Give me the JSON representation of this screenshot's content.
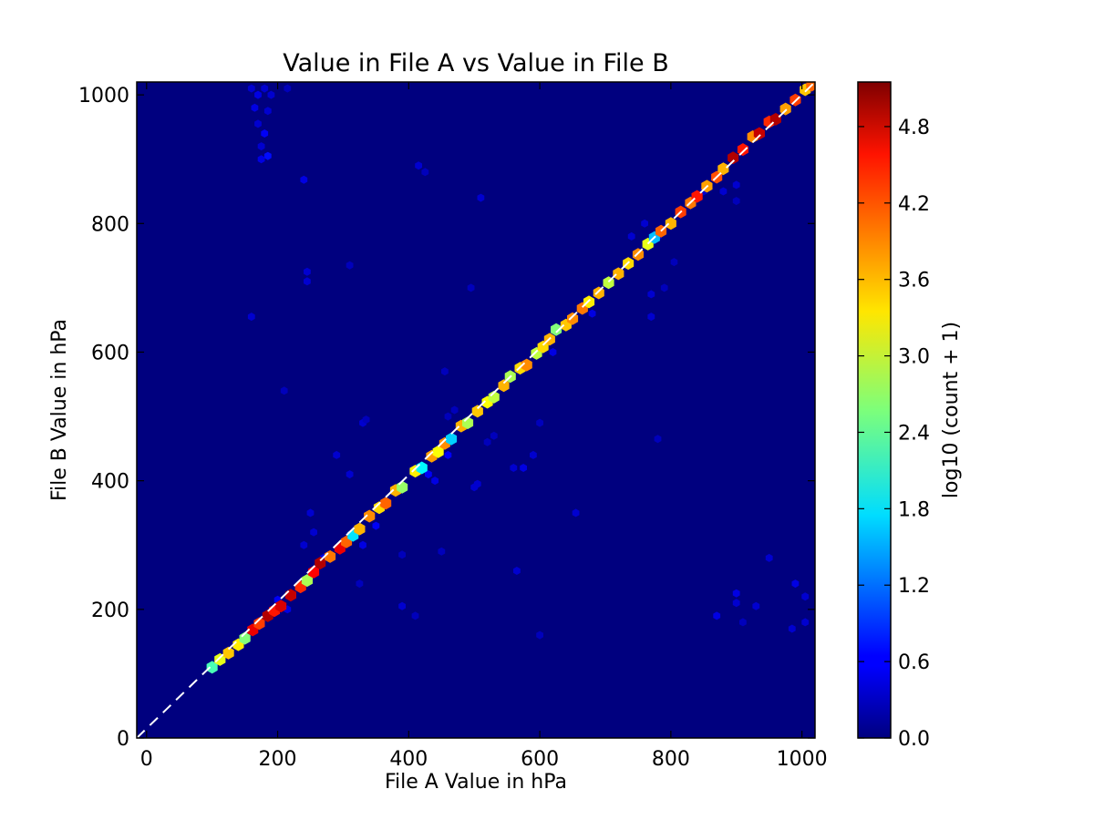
{
  "chart_data": {
    "type": "heatmap",
    "subtype": "hexbin",
    "title": "Value in File A vs Value in File B",
    "xlabel": "File A Value in hPa",
    "ylabel": "File B Value in hPa",
    "xlim": [
      -15,
      1020
    ],
    "ylim": [
      0,
      1020
    ],
    "x_ticks": [
      0,
      200,
      400,
      600,
      800,
      1000
    ],
    "y_ticks": [
      0,
      200,
      400,
      600,
      800,
      1000
    ],
    "grid": false,
    "background_color": "#00007f",
    "colormap": "jet",
    "reference_line": {
      "style": "dashed",
      "color": "#ffffff",
      "from": [
        -15,
        0
      ],
      "to": [
        1020,
        1020
      ]
    },
    "colorbar": {
      "label": "log10 (count + 1)",
      "range": [
        0,
        5.15
      ],
      "ticks": [
        "0.0",
        "0.6",
        "1.2",
        "1.8",
        "2.4",
        "3.0",
        "3.6",
        "4.2",
        "4.8"
      ]
    },
    "diagonal_points": [
      {
        "x": 100,
        "y": 110,
        "v": 2.3
      },
      {
        "x": 112,
        "y": 122,
        "v": 3.1
      },
      {
        "x": 125,
        "y": 132,
        "v": 3.5
      },
      {
        "x": 140,
        "y": 145,
        "v": 3.3
      },
      {
        "x": 150,
        "y": 155,
        "v": 2.6
      },
      {
        "x": 162,
        "y": 168,
        "v": 4.6
      },
      {
        "x": 172,
        "y": 178,
        "v": 4.2
      },
      {
        "x": 185,
        "y": 190,
        "v": 4.9
      },
      {
        "x": 195,
        "y": 198,
        "v": 4.4
      },
      {
        "x": 205,
        "y": 205,
        "v": 4.7
      },
      {
        "x": 220,
        "y": 222,
        "v": 4.8
      },
      {
        "x": 235,
        "y": 235,
        "v": 4.3
      },
      {
        "x": 245,
        "y": 245,
        "v": 2.8
      },
      {
        "x": 255,
        "y": 258,
        "v": 4.5
      },
      {
        "x": 265,
        "y": 272,
        "v": 4.9
      },
      {
        "x": 280,
        "y": 282,
        "v": 3.9
      },
      {
        "x": 295,
        "y": 295,
        "v": 4.6
      },
      {
        "x": 305,
        "y": 305,
        "v": 4.0
      },
      {
        "x": 315,
        "y": 315,
        "v": 1.8
      },
      {
        "x": 325,
        "y": 325,
        "v": 3.6
      },
      {
        "x": 340,
        "y": 345,
        "v": 3.8
      },
      {
        "x": 355,
        "y": 358,
        "v": 3.4
      },
      {
        "x": 365,
        "y": 365,
        "v": 4.0
      },
      {
        "x": 380,
        "y": 385,
        "v": 3.6
      },
      {
        "x": 390,
        "y": 390,
        "v": 2.7
      },
      {
        "x": 410,
        "y": 415,
        "v": 3.3
      },
      {
        "x": 420,
        "y": 420,
        "v": 1.9
      },
      {
        "x": 435,
        "y": 438,
        "v": 3.7
      },
      {
        "x": 445,
        "y": 445,
        "v": 3.2
      },
      {
        "x": 455,
        "y": 458,
        "v": 3.8
      },
      {
        "x": 465,
        "y": 465,
        "v": 1.7
      },
      {
        "x": 480,
        "y": 485,
        "v": 3.6
      },
      {
        "x": 490,
        "y": 490,
        "v": 2.8
      },
      {
        "x": 505,
        "y": 508,
        "v": 3.5
      },
      {
        "x": 520,
        "y": 522,
        "v": 3.2
      },
      {
        "x": 530,
        "y": 530,
        "v": 2.9
      },
      {
        "x": 545,
        "y": 548,
        "v": 3.6
      },
      {
        "x": 555,
        "y": 562,
        "v": 2.8
      },
      {
        "x": 570,
        "y": 575,
        "v": 3.4
      },
      {
        "x": 580,
        "y": 580,
        "v": 3.8
      },
      {
        "x": 595,
        "y": 598,
        "v": 2.9
      },
      {
        "x": 605,
        "y": 608,
        "v": 3.4
      },
      {
        "x": 615,
        "y": 620,
        "v": 3.6
      },
      {
        "x": 625,
        "y": 635,
        "v": 2.6
      },
      {
        "x": 640,
        "y": 642,
        "v": 3.5
      },
      {
        "x": 650,
        "y": 652,
        "v": 3.8
      },
      {
        "x": 665,
        "y": 668,
        "v": 3.9
      },
      {
        "x": 675,
        "y": 678,
        "v": 3.3
      },
      {
        "x": 690,
        "y": 692,
        "v": 3.6
      },
      {
        "x": 705,
        "y": 708,
        "v": 2.9
      },
      {
        "x": 720,
        "y": 722,
        "v": 3.6
      },
      {
        "x": 735,
        "y": 738,
        "v": 3.4
      },
      {
        "x": 750,
        "y": 752,
        "v": 3.8
      },
      {
        "x": 765,
        "y": 768,
        "v": 3.1
      },
      {
        "x": 775,
        "y": 778,
        "v": 1.6
      },
      {
        "x": 785,
        "y": 788,
        "v": 4.0
      },
      {
        "x": 800,
        "y": 800,
        "v": 3.6
      },
      {
        "x": 815,
        "y": 818,
        "v": 4.2
      },
      {
        "x": 830,
        "y": 832,
        "v": 3.9
      },
      {
        "x": 840,
        "y": 842,
        "v": 4.4
      },
      {
        "x": 855,
        "y": 858,
        "v": 3.7
      },
      {
        "x": 870,
        "y": 872,
        "v": 4.1
      },
      {
        "x": 880,
        "y": 885,
        "v": 3.6
      },
      {
        "x": 895,
        "y": 902,
        "v": 4.9
      },
      {
        "x": 910,
        "y": 915,
        "v": 4.4
      },
      {
        "x": 925,
        "y": 935,
        "v": 3.8
      },
      {
        "x": 935,
        "y": 940,
        "v": 4.8
      },
      {
        "x": 950,
        "y": 958,
        "v": 4.3
      },
      {
        "x": 960,
        "y": 962,
        "v": 4.9
      },
      {
        "x": 975,
        "y": 978,
        "v": 3.7
      },
      {
        "x": 990,
        "y": 992,
        "v": 4.2
      },
      {
        "x": 1005,
        "y": 1008,
        "v": 3.5
      },
      {
        "x": 1015,
        "y": 1015,
        "v": 4.0
      }
    ],
    "scatter_points": [
      {
        "x": 160,
        "y": 1010,
        "v": 0.4
      },
      {
        "x": 170,
        "y": 1000,
        "v": 0.5
      },
      {
        "x": 180,
        "y": 1010,
        "v": 0.4
      },
      {
        "x": 190,
        "y": 1000,
        "v": 0.4
      },
      {
        "x": 165,
        "y": 980,
        "v": 0.5
      },
      {
        "x": 185,
        "y": 975,
        "v": 0.4
      },
      {
        "x": 170,
        "y": 955,
        "v": 0.4
      },
      {
        "x": 180,
        "y": 940,
        "v": 0.6
      },
      {
        "x": 175,
        "y": 920,
        "v": 0.4
      },
      {
        "x": 185,
        "y": 905,
        "v": 0.7
      },
      {
        "x": 175,
        "y": 900,
        "v": 0.5
      },
      {
        "x": 215,
        "y": 1010,
        "v": 0.3
      },
      {
        "x": 240,
        "y": 868,
        "v": 0.5
      },
      {
        "x": 160,
        "y": 655,
        "v": 0.4
      },
      {
        "x": 245,
        "y": 725,
        "v": 0.4
      },
      {
        "x": 245,
        "y": 710,
        "v": 0.4
      },
      {
        "x": 310,
        "y": 735,
        "v": 0.3
      },
      {
        "x": 415,
        "y": 890,
        "v": 0.4
      },
      {
        "x": 425,
        "y": 880,
        "v": 0.3
      },
      {
        "x": 495,
        "y": 700,
        "v": 0.3
      },
      {
        "x": 510,
        "y": 840,
        "v": 0.4
      },
      {
        "x": 290,
        "y": 440,
        "v": 0.4
      },
      {
        "x": 330,
        "y": 490,
        "v": 0.4
      },
      {
        "x": 335,
        "y": 495,
        "v": 0.3
      },
      {
        "x": 455,
        "y": 570,
        "v": 0.3
      },
      {
        "x": 500,
        "y": 390,
        "v": 0.4
      },
      {
        "x": 505,
        "y": 395,
        "v": 0.4
      },
      {
        "x": 520,
        "y": 460,
        "v": 0.3
      },
      {
        "x": 575,
        "y": 420,
        "v": 0.5
      },
      {
        "x": 590,
        "y": 440,
        "v": 0.4
      },
      {
        "x": 560,
        "y": 420,
        "v": 0.4
      },
      {
        "x": 565,
        "y": 260,
        "v": 0.4
      },
      {
        "x": 600,
        "y": 160,
        "v": 0.3
      },
      {
        "x": 655,
        "y": 350,
        "v": 0.4
      },
      {
        "x": 390,
        "y": 205,
        "v": 0.4
      },
      {
        "x": 410,
        "y": 190,
        "v": 0.3
      },
      {
        "x": 390,
        "y": 285,
        "v": 0.3
      },
      {
        "x": 325,
        "y": 240,
        "v": 0.3
      },
      {
        "x": 310,
        "y": 410,
        "v": 0.4
      },
      {
        "x": 460,
        "y": 500,
        "v": 0.3
      },
      {
        "x": 470,
        "y": 510,
        "v": 0.3
      },
      {
        "x": 530,
        "y": 470,
        "v": 0.3
      },
      {
        "x": 770,
        "y": 690,
        "v": 0.4
      },
      {
        "x": 770,
        "y": 655,
        "v": 0.4
      },
      {
        "x": 780,
        "y": 780,
        "v": 0.5
      },
      {
        "x": 760,
        "y": 800,
        "v": 0.4
      },
      {
        "x": 790,
        "y": 700,
        "v": 0.3
      },
      {
        "x": 805,
        "y": 740,
        "v": 0.3
      },
      {
        "x": 850,
        "y": 850,
        "v": 0.4
      },
      {
        "x": 880,
        "y": 850,
        "v": 0.4
      },
      {
        "x": 900,
        "y": 860,
        "v": 0.4
      },
      {
        "x": 900,
        "y": 835,
        "v": 0.3
      },
      {
        "x": 870,
        "y": 190,
        "v": 0.5
      },
      {
        "x": 900,
        "y": 225,
        "v": 0.5
      },
      {
        "x": 900,
        "y": 210,
        "v": 0.4
      },
      {
        "x": 930,
        "y": 205,
        "v": 0.4
      },
      {
        "x": 950,
        "y": 280,
        "v": 0.4
      },
      {
        "x": 990,
        "y": 240,
        "v": 0.5
      },
      {
        "x": 1005,
        "y": 220,
        "v": 0.4
      },
      {
        "x": 1005,
        "y": 180,
        "v": 0.4
      },
      {
        "x": 985,
        "y": 170,
        "v": 0.4
      },
      {
        "x": 910,
        "y": 180,
        "v": 0.3
      },
      {
        "x": 780,
        "y": 465,
        "v": 0.3
      },
      {
        "x": 740,
        "y": 780,
        "v": 0.4
      },
      {
        "x": 600,
        "y": 490,
        "v": 0.3
      },
      {
        "x": 210,
        "y": 540,
        "v": 0.3
      },
      {
        "x": 250,
        "y": 350,
        "v": 0.4
      },
      {
        "x": 255,
        "y": 320,
        "v": 0.4
      },
      {
        "x": 270,
        "y": 280,
        "v": 0.5
      },
      {
        "x": 240,
        "y": 300,
        "v": 0.4
      },
      {
        "x": 430,
        "y": 410,
        "v": 0.6
      },
      {
        "x": 440,
        "y": 400,
        "v": 0.5
      },
      {
        "x": 460,
        "y": 440,
        "v": 0.6
      },
      {
        "x": 620,
        "y": 600,
        "v": 0.5
      },
      {
        "x": 680,
        "y": 660,
        "v": 0.5
      },
      {
        "x": 330,
        "y": 300,
        "v": 0.5
      },
      {
        "x": 350,
        "y": 330,
        "v": 0.6
      },
      {
        "x": 200,
        "y": 215,
        "v": 0.6
      },
      {
        "x": 215,
        "y": 200,
        "v": 0.5
      },
      {
        "x": 450,
        "y": 290,
        "v": 0.3
      }
    ]
  }
}
